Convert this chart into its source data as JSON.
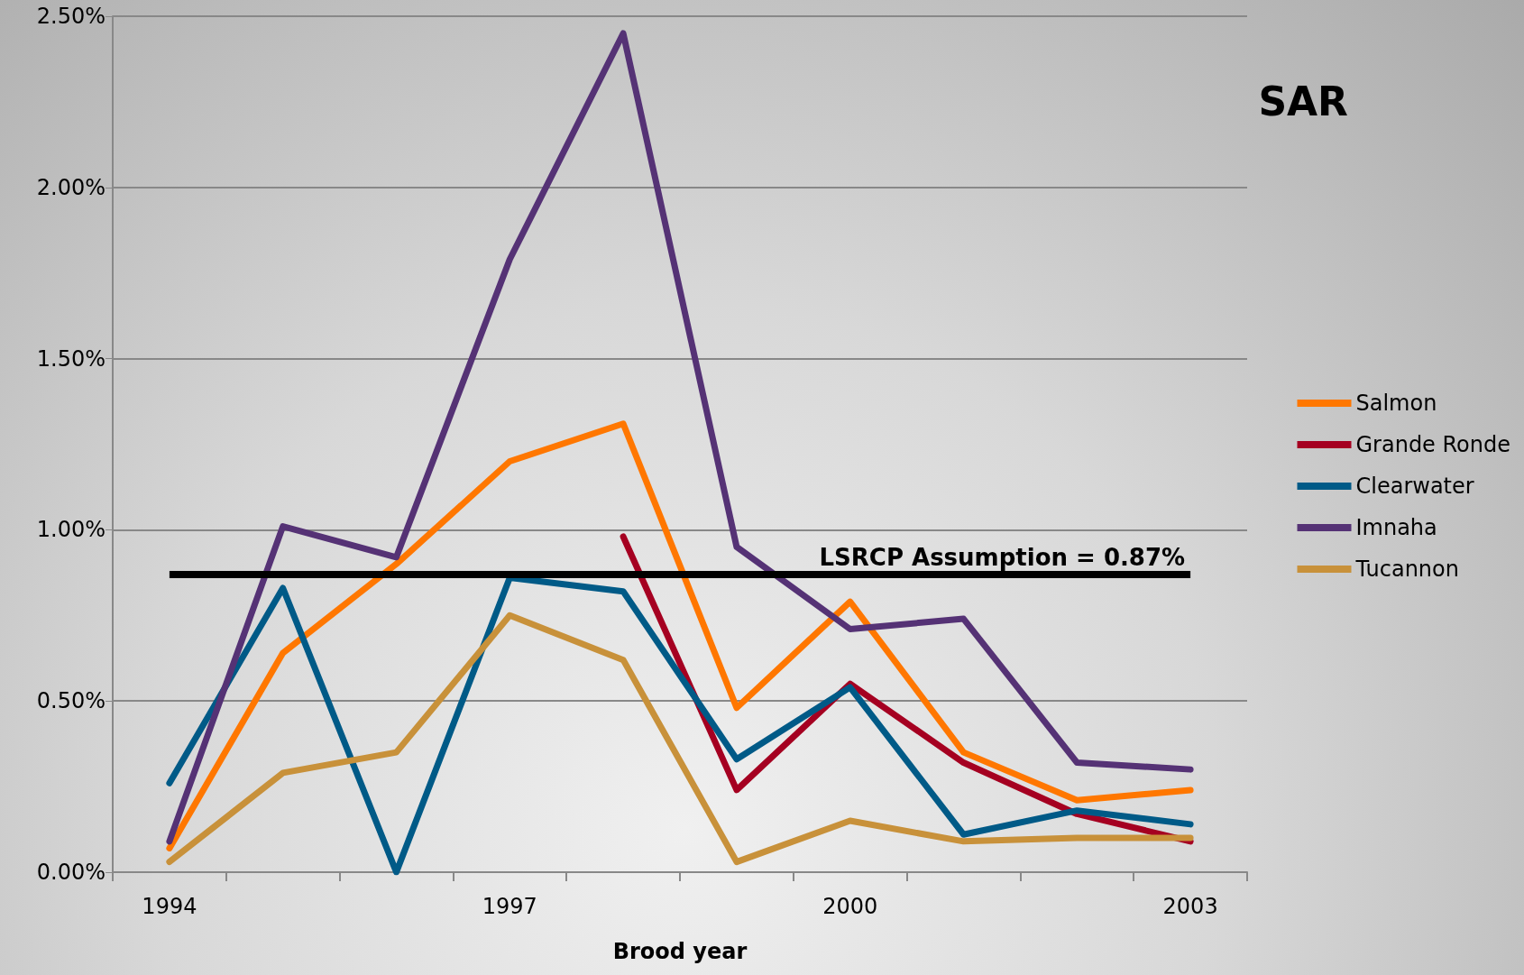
{
  "chart_data": {
    "type": "line",
    "title": "SAR",
    "xlabel": "Brood year",
    "categories": [
      "1994",
      null,
      null,
      "1997",
      null,
      null,
      "2000",
      null,
      null,
      "2003"
    ],
    "series": [
      {
        "name": "Salmon",
        "color": "#ff7700",
        "values": [
          0.07,
          0.64,
          0.9,
          1.2,
          1.31,
          0.48,
          0.79,
          0.35,
          0.21,
          0.24
        ]
      },
      {
        "name": "Grande Ronde",
        "color": "#a50021",
        "values": [
          null,
          null,
          null,
          null,
          0.98,
          0.24,
          0.55,
          0.32,
          0.17,
          0.09
        ]
      },
      {
        "name": "Clearwater",
        "color": "#005a87",
        "values": [
          0.26,
          0.83,
          0.0,
          0.86,
          0.82,
          0.33,
          0.54,
          0.11,
          0.18,
          0.14
        ]
      },
      {
        "name": "Imnaha",
        "color": "#553275",
        "values": [
          0.09,
          1.01,
          0.92,
          1.79,
          2.45,
          0.95,
          0.71,
          0.74,
          0.32,
          0.3
        ]
      },
      {
        "name": "Tucannon",
        "color": "#c8913a",
        "values": [
          0.03,
          0.29,
          0.35,
          0.75,
          0.62,
          0.03,
          0.15,
          0.09,
          0.1,
          0.1
        ]
      }
    ],
    "ylim": [
      0,
      2.5
    ],
    "yticks": [
      {
        "value": 0,
        "label": "0.00%"
      },
      {
        "value": 0.5,
        "label": "0.50%"
      },
      {
        "value": 1,
        "label": "1.00%"
      },
      {
        "value": 1.5,
        "label": "1.50%"
      },
      {
        "value": 2,
        "label": "2.00%"
      },
      {
        "value": 2.5,
        "label": "2.50%"
      }
    ],
    "ref_lines": [
      {
        "axis": "y",
        "value": 0.87,
        "label": "LSRCP Assumption = 0.87%",
        "color": "#000000"
      }
    ],
    "grid": "y",
    "legend": "right",
    "marker": "none",
    "line_style": "solid"
  }
}
